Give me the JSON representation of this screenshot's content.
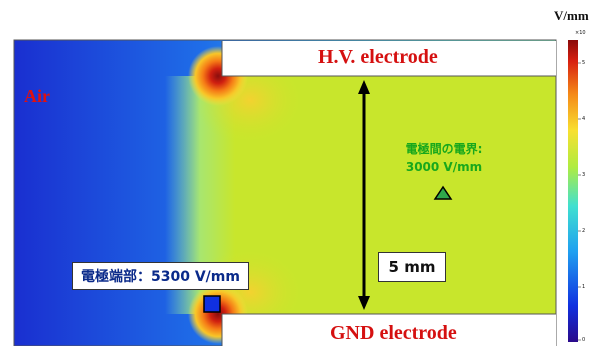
{
  "labels": {
    "air": "Air",
    "hv_electrode": "H.V. electrode",
    "gnd_electrode": "GND electrode",
    "field_between_line1": "電極間の電界:",
    "field_between_line2": "3000 V/mm",
    "edge_field": "電極端部：5300 V/mm",
    "gap": "5 mm"
  },
  "colorbar": {
    "unit": "V/mm",
    "exponent": "×10",
    "ticks": [
      "5",
      "4",
      "3",
      "2",
      "1",
      "0"
    ]
  },
  "colors": {
    "label_red": "#d51010",
    "field_green": "#18a81c",
    "box_text_blue": "#0a2a8a",
    "uniform_field": "#c8e62c",
    "edge_marker": "#1030e0",
    "center_marker": "#2fa84a"
  }
}
